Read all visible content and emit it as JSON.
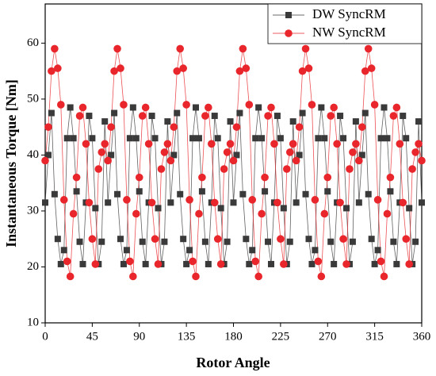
{
  "chart_data": {
    "type": "line",
    "xlabel": "Rotor Angle",
    "ylabel": "Instantaneous Torque [Nm]",
    "x": [
      0,
      3,
      6,
      9,
      12,
      15,
      18,
      21,
      24,
      27,
      30,
      33,
      36,
      39,
      42,
      45,
      48,
      51,
      54,
      57,
      60,
      63,
      66,
      69,
      72,
      75,
      78,
      81,
      84,
      87,
      90,
      93,
      96,
      99,
      102,
      105,
      108,
      111,
      114,
      117,
      120,
      123,
      126,
      129,
      132,
      135,
      138,
      141,
      144,
      147,
      150,
      153,
      156,
      159,
      162,
      165,
      168,
      171,
      174,
      177,
      180,
      183,
      186,
      189,
      192,
      195,
      198,
      201,
      204,
      207,
      210,
      213,
      216,
      219,
      222,
      225,
      228,
      231,
      234,
      237,
      240,
      243,
      246,
      249,
      252,
      255,
      258,
      261,
      264,
      267,
      270,
      273,
      276,
      279,
      282,
      285,
      288,
      291,
      294,
      297,
      300,
      303,
      306,
      309,
      312,
      315,
      318,
      321,
      324,
      327,
      330,
      333,
      336,
      339,
      342,
      345,
      348,
      351,
      354,
      357,
      360
    ],
    "series": [
      {
        "name": "DW SyncRM",
        "color": "#3a3a3a",
        "marker": "square",
        "values": [
          31.5,
          40,
          47.5,
          33,
          25,
          20.5,
          23,
          43,
          48.5,
          43,
          33.5,
          24.5,
          20.5,
          31.5,
          47,
          43,
          30.5,
          20.5,
          24.5,
          46,
          31.5,
          40,
          47.5,
          33,
          25,
          20.5,
          23,
          43,
          48.5,
          43,
          33.5,
          24.5,
          20.5,
          31.5,
          47,
          43,
          30.5,
          20.5,
          24.5,
          46,
          31.5,
          40,
          47.5,
          33,
          25,
          20.5,
          23,
          43,
          48.5,
          43,
          33.5,
          24.5,
          20.5,
          31.5,
          47,
          43,
          30.5,
          20.5,
          24.5,
          46,
          31.5,
          40,
          47.5,
          33,
          25,
          20.5,
          23,
          43,
          48.5,
          43,
          33.5,
          24.5,
          20.5,
          31.5,
          47,
          43,
          30.5,
          20.5,
          24.5,
          46,
          31.5,
          40,
          47.5,
          33,
          25,
          20.5,
          23,
          43,
          48.5,
          43,
          33.5,
          24.5,
          20.5,
          31.5,
          47,
          43,
          30.5,
          20.5,
          24.5,
          46,
          31.5,
          40,
          47.5,
          33,
          25,
          20.5,
          23,
          43,
          48.5,
          43,
          33.5,
          24.5,
          20.5,
          31.5,
          47,
          43,
          30.5,
          20.5,
          24.5,
          46,
          31.5
        ]
      },
      {
        "name": "NW SyncRM",
        "color": "#e8262b",
        "marker": "circle",
        "values": [
          39,
          45,
          55,
          59,
          55.5,
          49,
          32,
          21,
          18.3,
          29.5,
          36,
          47,
          48.5,
          42,
          31.5,
          25,
          20.5,
          37.5,
          40.5,
          42,
          39,
          45,
          55,
          59,
          55.5,
          49,
          32,
          21,
          18.3,
          29.5,
          36,
          47,
          48.5,
          42,
          31.5,
          25,
          20.5,
          37.5,
          40.5,
          42,
          39,
          45,
          55,
          59,
          55.5,
          49,
          32,
          21,
          18.3,
          29.5,
          36,
          47,
          48.5,
          42,
          31.5,
          25,
          20.5,
          37.5,
          40.5,
          42,
          39,
          45,
          55,
          59,
          55.5,
          49,
          32,
          21,
          18.3,
          29.5,
          36,
          47,
          48.5,
          42,
          31.5,
          25,
          20.5,
          37.5,
          40.5,
          42,
          39,
          45,
          55,
          59,
          55.5,
          49,
          32,
          21,
          18.3,
          29.5,
          36,
          47,
          48.5,
          42,
          31.5,
          25,
          20.5,
          37.5,
          40.5,
          42,
          39,
          45,
          55,
          59,
          55.5,
          49,
          32,
          21,
          18.3,
          29.5,
          36,
          47,
          48.5,
          42,
          31.5,
          25,
          20.5,
          37.5,
          40.5,
          42,
          39
        ]
      }
    ],
    "xlim": [
      0,
      360
    ],
    "xticks": [
      0,
      45,
      90,
      135,
      180,
      225,
      270,
      315,
      360
    ],
    "ylim": [
      10,
      67
    ],
    "yticks": [
      10,
      20,
      30,
      40,
      50,
      60
    ],
    "legend": "upper right"
  }
}
